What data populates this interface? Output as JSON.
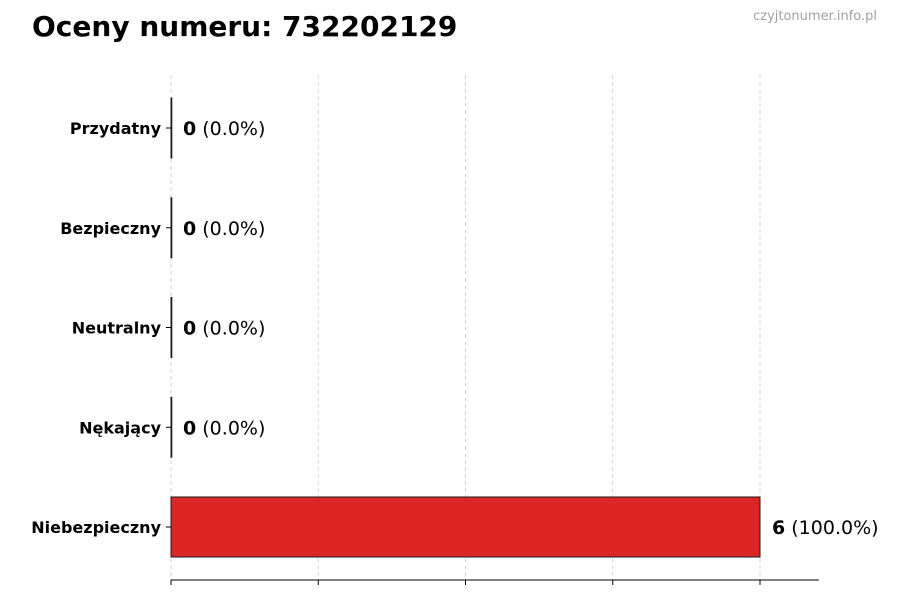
{
  "header": {
    "title": "Oceny numeru: 732202129",
    "watermark": "czyjtonumer.info.pl"
  },
  "chart_data": {
    "type": "bar",
    "orientation": "horizontal",
    "title": "Oceny numeru: 732202129",
    "xlabel": "",
    "ylabel": "",
    "categories": [
      "Przydatny",
      "Bezpieczny",
      "Neutralny",
      "Nękający",
      "Niebezpieczny"
    ],
    "values": [
      0,
      0,
      0,
      0,
      6
    ],
    "data_labels": [
      {
        "count": "0",
        "pct": "(0.0%)"
      },
      {
        "count": "0",
        "pct": "(0.0%)"
      },
      {
        "count": "0",
        "pct": "(0.0%)"
      },
      {
        "count": "0",
        "pct": "(0.0%)"
      },
      {
        "count": "6",
        "pct": "(100.0%)"
      }
    ],
    "xlim": [
      0,
      6.6
    ],
    "xticks": [
      0,
      1.5,
      3,
      4.5,
      6
    ],
    "grid": "vertical dashed",
    "bar_color": "#dc2626",
    "edge_color": "#1a1a1a"
  }
}
